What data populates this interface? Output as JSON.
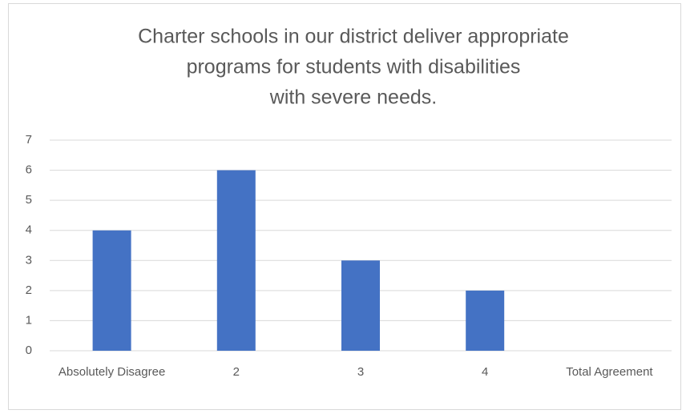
{
  "chart_data": {
    "type": "bar",
    "title": [
      "Charter schools in our district deliver appropriate",
      "programs for students with disabilities",
      "with severe needs."
    ],
    "categories": [
      "Absolutely Disagree",
      "2",
      "3",
      "4",
      "Total Agreement"
    ],
    "values": [
      4,
      6,
      3,
      2,
      0
    ],
    "color": "#4472c4",
    "ylim": [
      0,
      7
    ],
    "yticks": [
      0,
      1,
      2,
      3,
      4,
      5,
      6,
      7
    ],
    "grid": true
  }
}
